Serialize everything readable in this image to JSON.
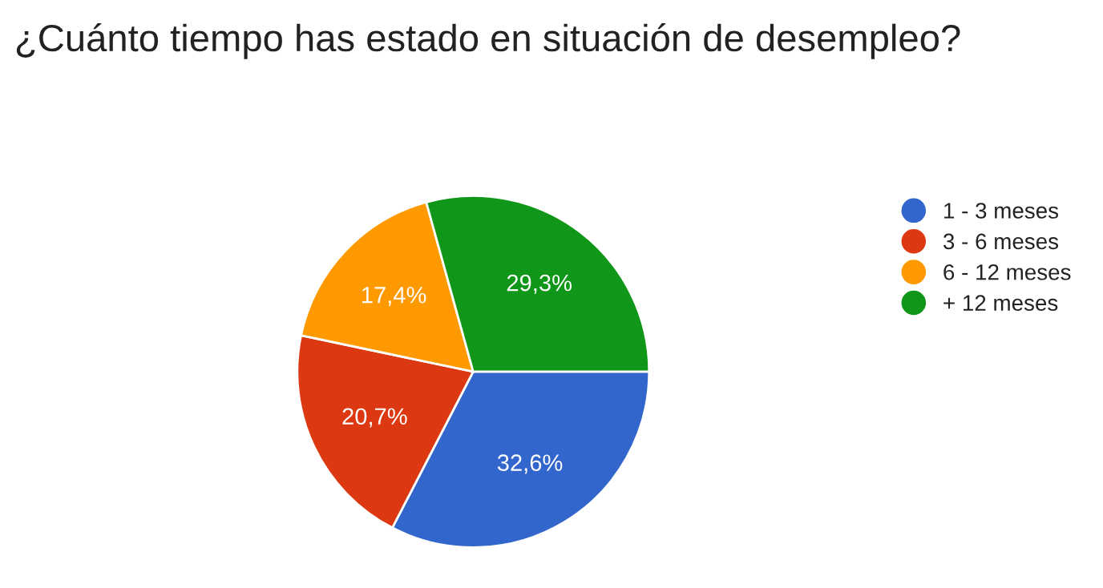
{
  "chart_data": {
    "type": "pie",
    "title": "¿Cuánto tiempo has estado en situación de desempleo?",
    "categories": [
      "1 - 3 meses",
      "3 - 6 meses",
      "6 - 12 meses",
      "+ 12 meses"
    ],
    "values": [
      32.6,
      20.7,
      17.4,
      29.3
    ],
    "colors": [
      "#3366cc",
      "#dc3912",
      "#ff9900",
      "#109618"
    ],
    "value_labels": [
      "32,6%",
      "20,7%",
      "17,4%",
      "29,3%"
    ],
    "legend": "right"
  }
}
